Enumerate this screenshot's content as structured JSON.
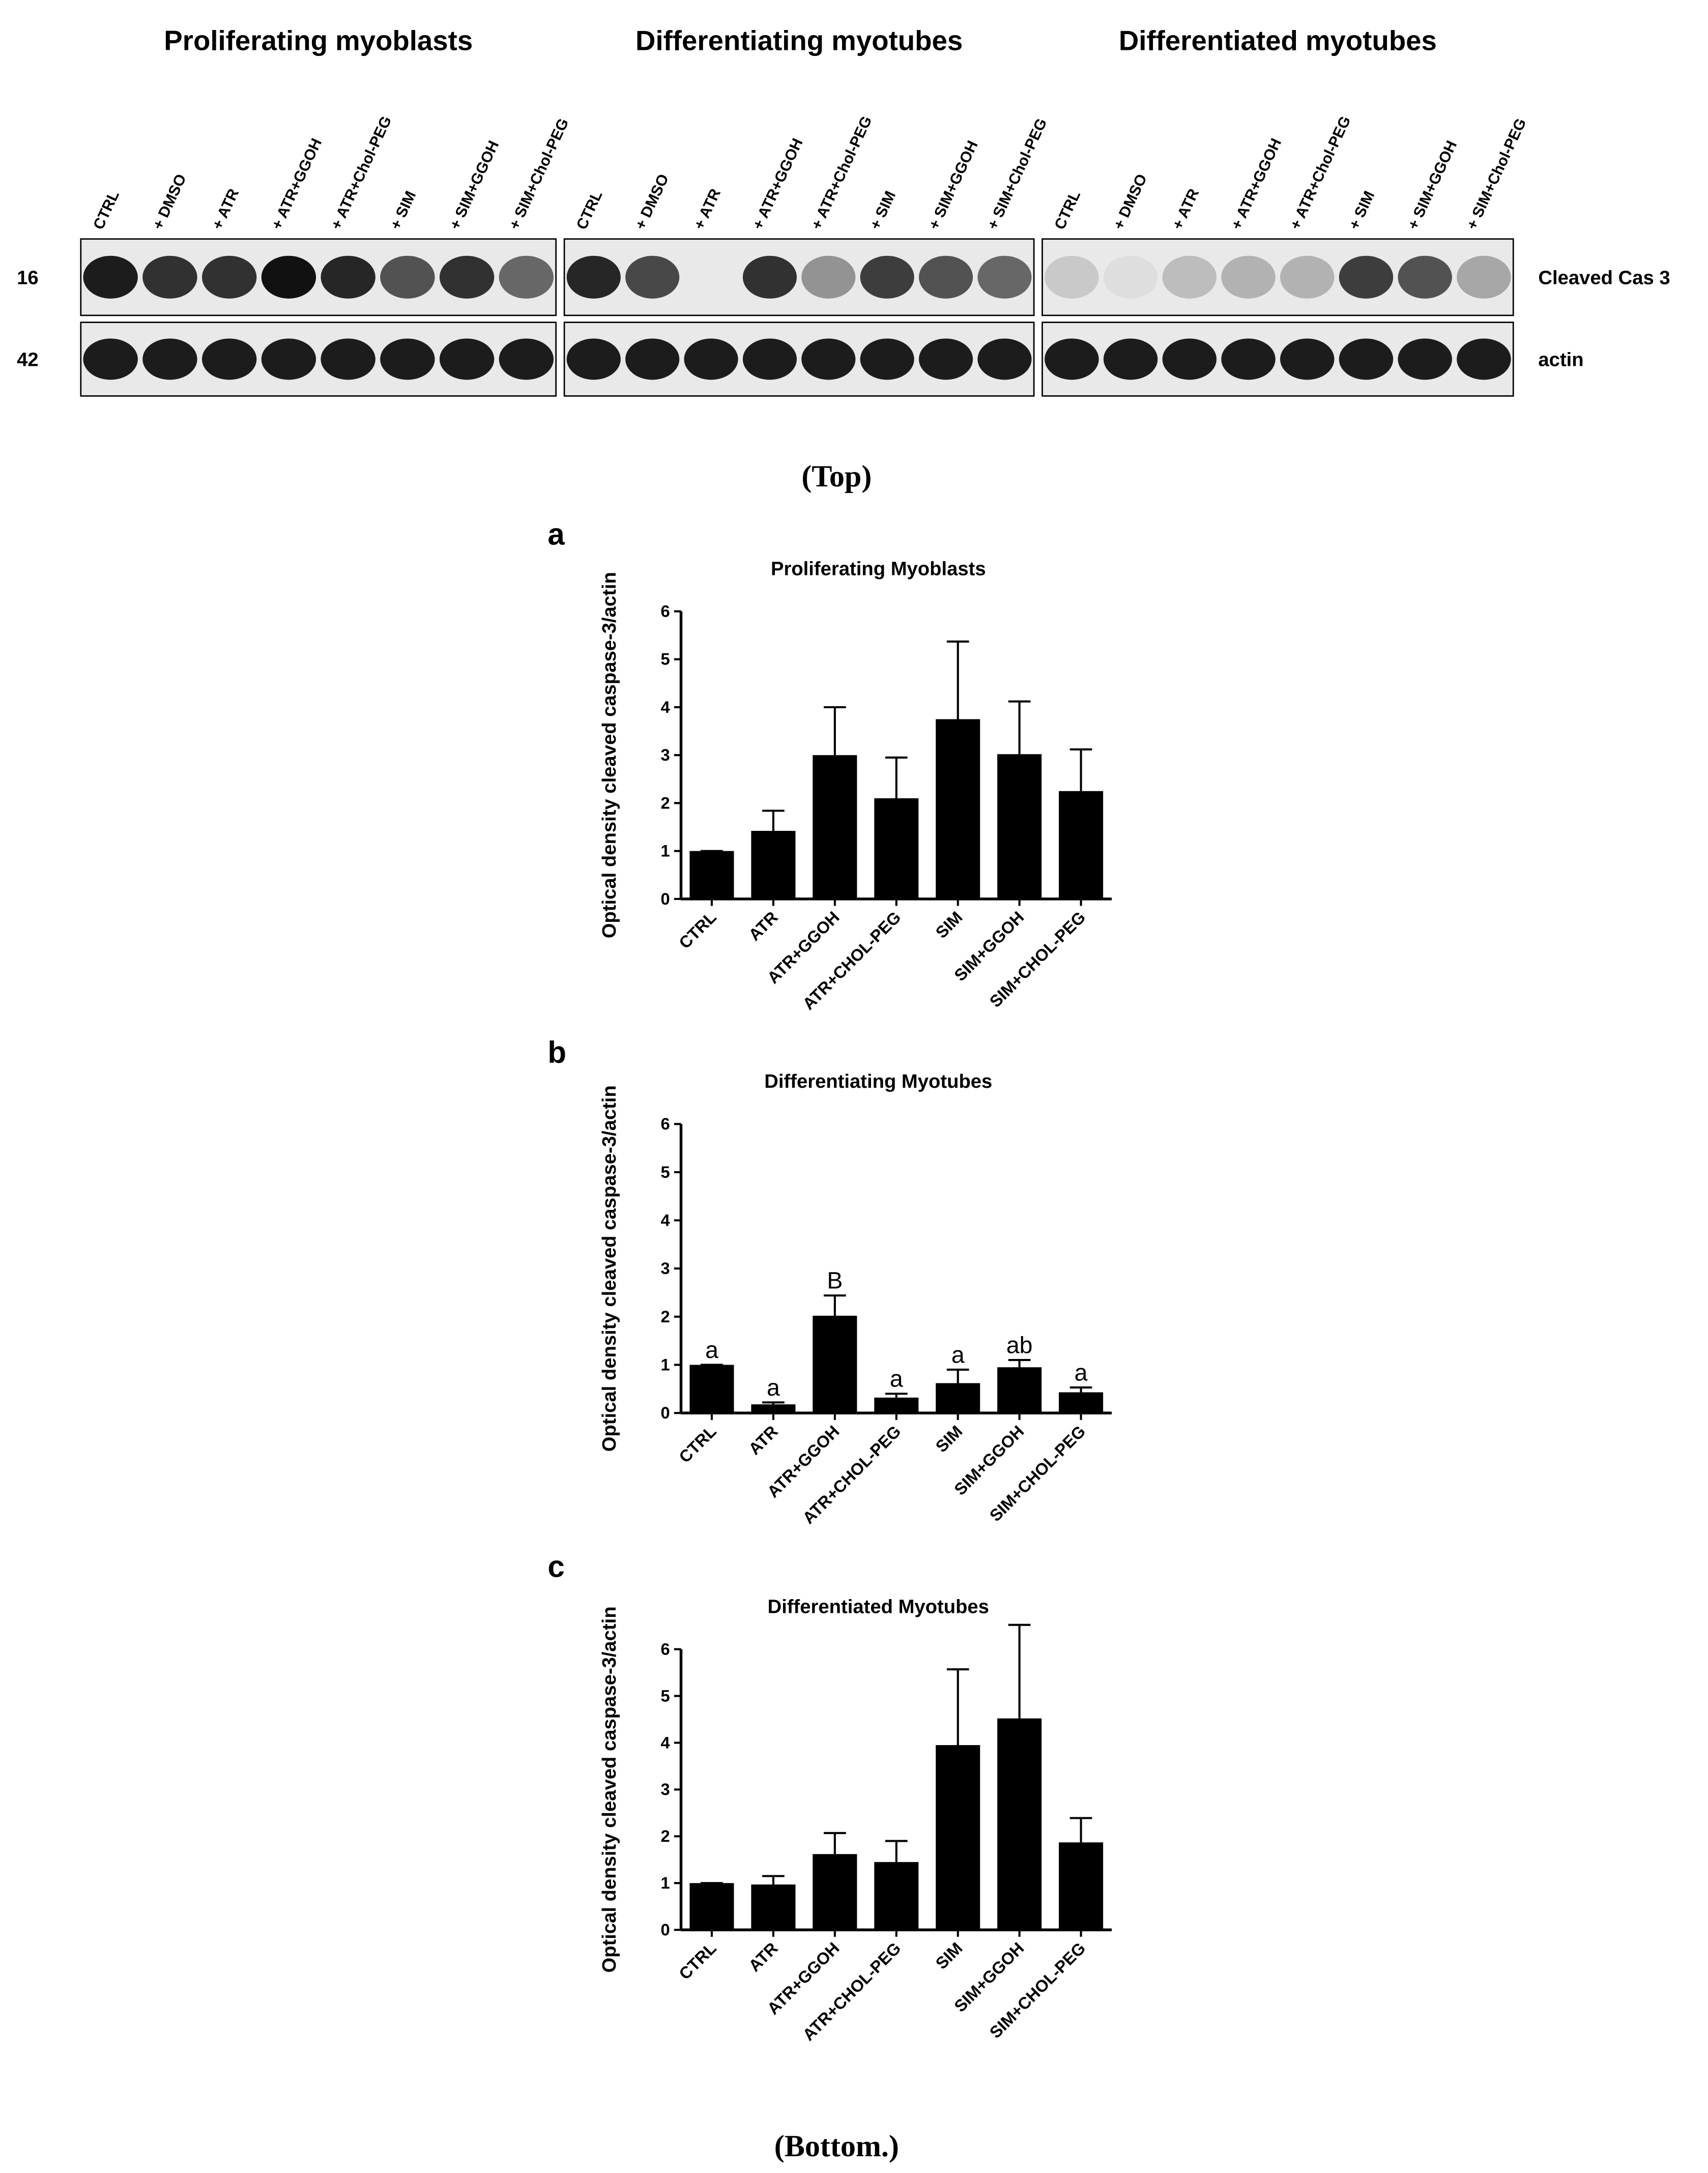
{
  "blot": {
    "panels": [
      {
        "title": "Proliferating myoblasts",
        "lanes": [
          "CTRL",
          "+ DMSO",
          "+ ATR",
          "+ ATR+GGOH",
          "+ ATR+Chol-PEG",
          "+ SIM",
          "+ SIM+GGOH",
          "+ SIM+Chol-PEG"
        ]
      },
      {
        "title": "Differentiating myotubes",
        "lanes": [
          "CTRL",
          "+ DMSO",
          "+ ATR",
          "+ ATR+GGOH",
          "+ ATR+Chol-PEG",
          "+ SIM",
          "+ SIM+GGOH",
          "+ SIM+Chol-PEG"
        ]
      },
      {
        "title": "Differentiated myotubes",
        "lanes": [
          "CTRL",
          "+ DMSO",
          "+ ATR",
          "+ ATR+GGOH",
          "+ ATR+Chol-PEG",
          "+ SIM",
          "+ SIM+GGOH",
          "+ SIM+Chol-PEG"
        ]
      }
    ],
    "rows": [
      {
        "marker": "16",
        "label": "Cleaved Cas 3"
      },
      {
        "marker": "42",
        "label": "actin"
      }
    ]
  },
  "captions": {
    "top": "(Top)",
    "bottom": "(Bottom.)"
  },
  "chart_data": [
    {
      "type": "bar",
      "panel": "a",
      "title": "Proliferating Myoblasts",
      "ylabel": "Optical density cleaved caspase-3/actin",
      "categories": [
        "CTRL",
        "ATR",
        "ATR+GGOH",
        "ATR+CHOL-PEG",
        "SIM",
        "SIM+GGOH",
        "SIM+CHOL-PEG"
      ],
      "values": [
        1.0,
        1.42,
        3.0,
        2.1,
        3.75,
        3.02,
        2.25
      ],
      "errors": [
        0,
        0.42,
        1.0,
        0.85,
        1.62,
        1.1,
        0.87
      ],
      "color": "#000000",
      "ylim": [
        0,
        6
      ],
      "yticks": [
        0,
        1,
        2,
        3,
        4,
        5,
        6
      ]
    },
    {
      "type": "bar",
      "panel": "b",
      "title": "Differentiating Myotubes",
      "ylabel": "Optical density cleaved caspase-3/actin",
      "categories": [
        "CTRL",
        "ATR",
        "ATR+GGOH",
        "ATR+CHOL-PEG",
        "SIM",
        "SIM+GGOH",
        "SIM+CHOL-PEG"
      ],
      "values": [
        1.0,
        0.18,
        2.02,
        0.32,
        0.62,
        0.95,
        0.43
      ],
      "errors": [
        0,
        0.04,
        0.42,
        0.08,
        0.28,
        0.15,
        0.1
      ],
      "annotations": [
        "a",
        "a",
        "B",
        "a",
        "a",
        "ab",
        "a"
      ],
      "color": "#000000",
      "ylim": [
        0,
        6
      ],
      "yticks": [
        0,
        1,
        2,
        3,
        4,
        5,
        6
      ]
    },
    {
      "type": "bar",
      "panel": "c",
      "title": "Differentiated Myotubes",
      "ylabel": "Optical density cleaved caspase-3/actin",
      "categories": [
        "CTRL",
        "ATR",
        "ATR+GGOH",
        "ATR+CHOL-PEG",
        "SIM",
        "SIM+GGOH",
        "SIM+CHOL-PEG"
      ],
      "values": [
        1.0,
        0.97,
        1.62,
        1.45,
        3.95,
        4.52,
        1.87
      ],
      "errors": [
        0,
        0.18,
        0.45,
        0.45,
        1.62,
        2.0,
        0.52
      ],
      "color": "#000000",
      "ylim": [
        0,
        6
      ],
      "yticks": [
        0,
        1,
        2,
        3,
        4,
        5,
        6
      ]
    }
  ]
}
